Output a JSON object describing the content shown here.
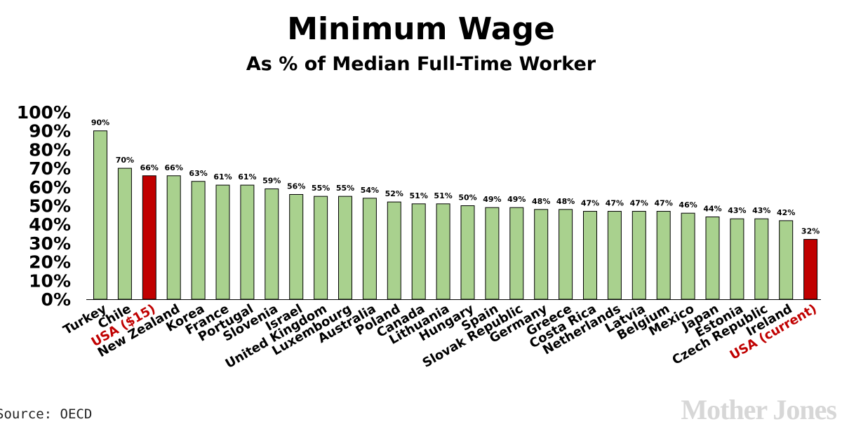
{
  "title": "Minimum Wage",
  "subtitle": "As % of Median Full-Time Worker",
  "source": "Source: OECD",
  "logo": "Mother Jones",
  "colors": {
    "bar_default": "#a9d18e",
    "bar_highlight": "#c00000",
    "label_highlight": "#c00000",
    "bar_stroke": "#000000"
  },
  "chart_data": {
    "type": "bar",
    "categories": [
      "Turkey",
      "Chile",
      "USA ($15)",
      "New Zealand",
      "Korea",
      "France",
      "Portugal",
      "Slovenia",
      "Israel",
      "United Kingdom",
      "Luxembourg",
      "Australia",
      "Poland",
      "Canada",
      "Lithuania",
      "Hungary",
      "Spain",
      "Slovak Republic",
      "Germany",
      "Greece",
      "Costa Rica",
      "Netherlands",
      "Latvia",
      "Belgium",
      "Mexico",
      "Japan",
      "Estonia",
      "Czech Republic",
      "Ireland",
      "USA (current)"
    ],
    "values": [
      90,
      70,
      66,
      66,
      63,
      61,
      61,
      59,
      56,
      55,
      55,
      54,
      52,
      51,
      51,
      50,
      49,
      49,
      48,
      48,
      47,
      47,
      47,
      47,
      46,
      44,
      43,
      43,
      42,
      32
    ],
    "data_labels": [
      "90%",
      "70%",
      "66%",
      "66%",
      "63%",
      "61%",
      "61%",
      "59%",
      "56%",
      "55%",
      "55%",
      "54%",
      "52%",
      "51%",
      "51%",
      "50%",
      "49%",
      "49%",
      "48%",
      "48%",
      "47%",
      "47%",
      "47%",
      "47%",
      "46%",
      "44%",
      "43%",
      "43%",
      "42%",
      "32%"
    ],
    "highlighted": [
      "USA ($15)",
      "USA (current)"
    ],
    "ylim": [
      0,
      100
    ],
    "yticks": [
      "0%",
      "10%",
      "20%",
      "30%",
      "40%",
      "50%",
      "60%",
      "70%",
      "80%",
      "90%",
      "100%"
    ],
    "title": "Minimum Wage",
    "subtitle": "As % of Median Full-Time Worker",
    "xlabel": "",
    "ylabel": "",
    "grid": false,
    "legend": "none"
  }
}
